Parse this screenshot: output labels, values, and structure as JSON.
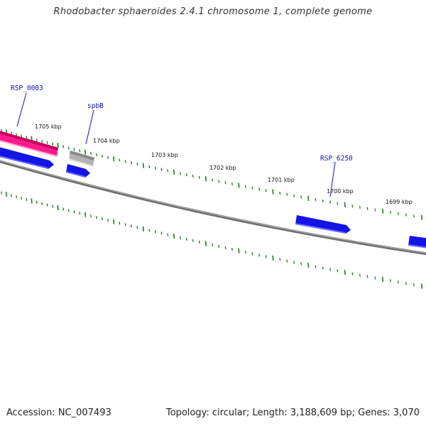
{
  "header": {
    "title": "Rhodobacter sphaeroides 2.4.1 chromosome 1, complete genome"
  },
  "footer": {
    "accession": "Accession: NC_007493",
    "summary": "Topology: circular; Length: 3,188,609 bp; Genes: 3,070"
  },
  "colors": {
    "backbone": "#7a7a7a",
    "tick": "#1e7a1e",
    "gene_forward": "#1414e6",
    "gene_highlight": "#ff1a8c",
    "gene_grey": "#a8a8a8",
    "label_blue": "#1010b8"
  },
  "map": {
    "position_labels": [
      "1705 kbp",
      "1704 kbp",
      "1703 kbp",
      "1702 kbp",
      "1701 kbp",
      "1700 kbp",
      "1699 kbp"
    ],
    "gene_labels": {
      "rsp0003": "RSP_0003",
      "spbb": "spbB",
      "rsp6250": "RSP_6250"
    }
  }
}
